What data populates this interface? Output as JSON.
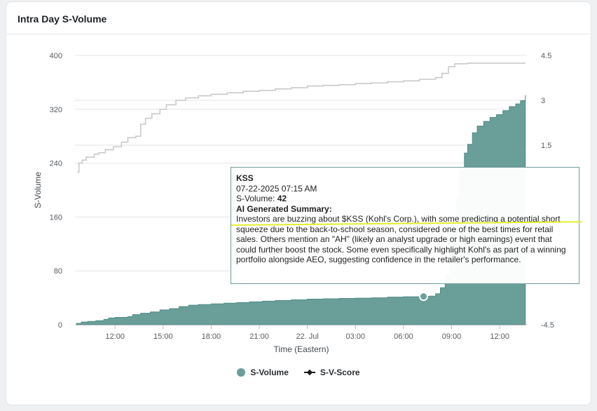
{
  "card": {
    "title": "Intra Day S-Volume"
  },
  "colors": {
    "volume_fill": "#6a9e99",
    "volume_stroke": "#4f8a84",
    "score_line": "#c9c9c9",
    "tooltip_border": "#6f9c9a",
    "highlight": "#e3ee2c"
  },
  "tooltip": {
    "symbol": "KSS",
    "datetime": "07-22-2025 07:15 AM",
    "volume_label": "S-Volume:",
    "volume_value": "42",
    "summary_label": "AI Generated Summary:",
    "summary": "Investors are buzzing about $KSS (Kohl's Corp.), with some predicting a potential short squeeze due to the back-to-school season, considered one of the best times for retail sales. Others mention an \"AH\" (likely an analyst upgrade or high earnings) event that could further boost the stock. Some even specifically highlight Kohl's as part of a winning portfolio alongside AEO, suggesting confidence in the retailer's performance."
  },
  "legend": {
    "items": [
      "S-Volume",
      "S-V-Score"
    ]
  },
  "chart_data": {
    "type": "area",
    "title": "Intra Day S-Volume",
    "xlabel": "Time (Eastern)",
    "ylabel": "S-Volume",
    "x_ticks": [
      {
        "h": 12,
        "label": "12:00"
      },
      {
        "h": 15,
        "label": "15:00"
      },
      {
        "h": 18,
        "label": "18:00"
      },
      {
        "h": 21,
        "label": "21:00"
      },
      {
        "h": 24,
        "label": "22. Jul"
      },
      {
        "h": 27,
        "label": "03:00"
      },
      {
        "h": 30,
        "label": "06:00"
      },
      {
        "h": 33,
        "label": "09:00"
      },
      {
        "h": 36,
        "label": "12:00"
      }
    ],
    "xlim": [
      9.5,
      37.7
    ],
    "y_left": {
      "ticks": [
        0,
        80,
        160,
        240,
        320,
        400
      ],
      "lim": [
        0,
        400
      ]
    },
    "y_right": {
      "ticks": [
        -4.5,
        1.5,
        3,
        4.5
      ],
      "lim": [
        -4.5,
        4.5
      ]
    },
    "grid": true,
    "legend_position": "bottom-center",
    "series": [
      {
        "name": "S-Volume",
        "axis": "left",
        "type": "area",
        "points": [
          [
            9.6,
            2
          ],
          [
            9.9,
            4
          ],
          [
            10.3,
            5
          ],
          [
            10.8,
            6
          ],
          [
            11.3,
            8
          ],
          [
            11.6,
            10
          ],
          [
            12.0,
            11
          ],
          [
            12.8,
            12
          ],
          [
            13.1,
            15
          ],
          [
            13.6,
            17
          ],
          [
            14.2,
            19
          ],
          [
            14.8,
            22
          ],
          [
            15.4,
            24
          ],
          [
            16.0,
            27
          ],
          [
            16.6,
            29
          ],
          [
            17.2,
            30
          ],
          [
            18.0,
            31
          ],
          [
            18.8,
            32
          ],
          [
            19.6,
            33
          ],
          [
            20.4,
            34
          ],
          [
            21.2,
            35
          ],
          [
            22.0,
            36
          ],
          [
            23.0,
            37
          ],
          [
            24.0,
            38
          ],
          [
            25.0,
            38.5
          ],
          [
            26.0,
            39
          ],
          [
            27.0,
            39.5
          ],
          [
            28.0,
            40
          ],
          [
            29.0,
            41
          ],
          [
            30.0,
            41.5
          ],
          [
            31.25,
            42
          ],
          [
            31.6,
            42.5
          ],
          [
            32.0,
            46
          ],
          [
            32.3,
            55
          ],
          [
            32.6,
            75
          ],
          [
            32.9,
            110
          ],
          [
            33.1,
            150
          ],
          [
            33.3,
            190
          ],
          [
            33.5,
            230
          ],
          [
            33.8,
            255
          ],
          [
            34.0,
            268
          ],
          [
            34.3,
            285
          ],
          [
            34.6,
            295
          ],
          [
            35.0,
            302
          ],
          [
            35.4,
            308
          ],
          [
            35.8,
            312
          ],
          [
            36.2,
            318
          ],
          [
            36.6,
            324
          ],
          [
            37.0,
            328
          ],
          [
            37.3,
            333
          ],
          [
            37.6,
            341
          ]
        ],
        "highlight": [
          31.25,
          42
        ]
      },
      {
        "name": "S-V-Score",
        "axis": "right",
        "type": "line",
        "points": [
          [
            9.65,
            0.6
          ],
          [
            9.75,
            0.9
          ],
          [
            9.95,
            1.0
          ],
          [
            10.2,
            1.1
          ],
          [
            10.7,
            1.2
          ],
          [
            11.0,
            1.25
          ],
          [
            11.4,
            1.35
          ],
          [
            11.9,
            1.45
          ],
          [
            12.4,
            1.6
          ],
          [
            12.8,
            1.75
          ],
          [
            13.3,
            1.8
          ],
          [
            13.6,
            2.2
          ],
          [
            13.9,
            2.4
          ],
          [
            14.3,
            2.55
          ],
          [
            14.8,
            2.7
          ],
          [
            15.2,
            2.85
          ],
          [
            15.8,
            3.0
          ],
          [
            16.4,
            3.08
          ],
          [
            17.2,
            3.15
          ],
          [
            18.0,
            3.2
          ],
          [
            19.0,
            3.25
          ],
          [
            20.0,
            3.3
          ],
          [
            21.0,
            3.33
          ],
          [
            22.0,
            3.38
          ],
          [
            23.0,
            3.42
          ],
          [
            24.0,
            3.48
          ],
          [
            25.0,
            3.5
          ],
          [
            26.0,
            3.52
          ],
          [
            27.0,
            3.56
          ],
          [
            28.0,
            3.58
          ],
          [
            29.0,
            3.62
          ],
          [
            30.0,
            3.65
          ],
          [
            31.0,
            3.7
          ],
          [
            32.0,
            3.76
          ],
          [
            32.4,
            3.9
          ],
          [
            32.8,
            4.12
          ],
          [
            33.2,
            4.22
          ],
          [
            34.0,
            4.24
          ],
          [
            35.0,
            4.24
          ],
          [
            36.0,
            4.24
          ],
          [
            37.6,
            4.24
          ]
        ]
      }
    ]
  }
}
